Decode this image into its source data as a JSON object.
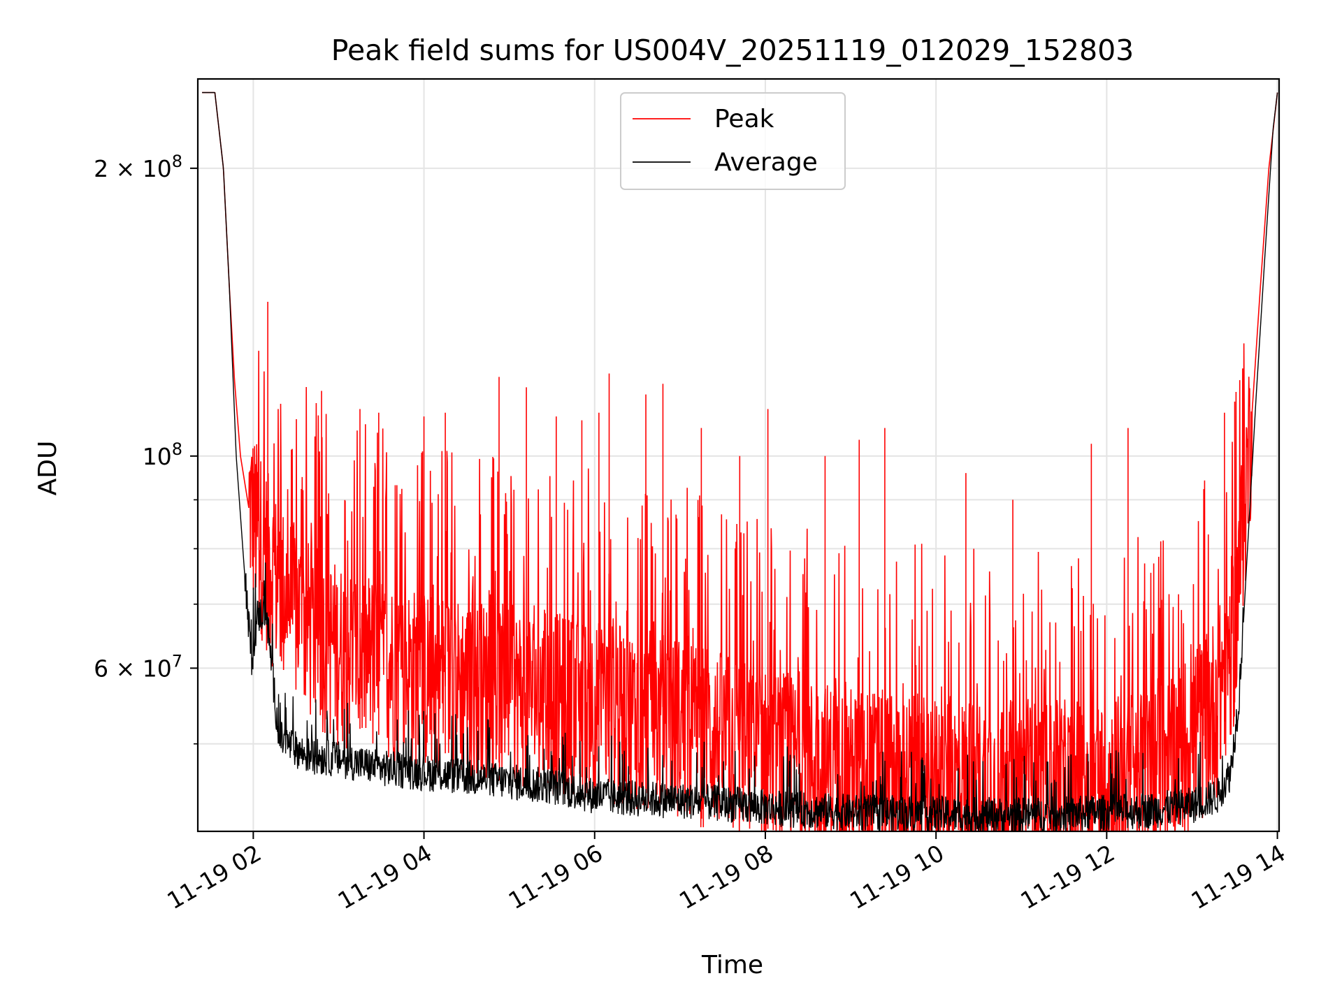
{
  "chart_data": {
    "type": "line",
    "title": "Peak field sums for US004V_20251119_012029_152803",
    "xlabel": "Time",
    "ylabel": "ADU",
    "yscale": "log",
    "xlim": [
      1.35,
      14.02
    ],
    "ylim": [
      40500000,
      248000000
    ],
    "grid": true,
    "legend": {
      "position": "upper center",
      "entries": [
        "Peak",
        "Average"
      ]
    },
    "x_ticks": [
      {
        "value": 2,
        "label": "11-19 02"
      },
      {
        "value": 4,
        "label": "11-19 04"
      },
      {
        "value": 6,
        "label": "11-19 06"
      },
      {
        "value": 8,
        "label": "11-19 08"
      },
      {
        "value": 10,
        "label": "11-19 10"
      },
      {
        "value": 12,
        "label": "11-19 12"
      },
      {
        "value": 14,
        "label": "11-19 14"
      }
    ],
    "y_ticks": [
      {
        "value": 200000000,
        "label": "2 × 10⁸",
        "mant": "2 × 10",
        "exp": "8"
      },
      {
        "value": 100000000,
        "label": "10⁸",
        "mant": "10",
        "exp": "8"
      },
      {
        "value": 60000000,
        "label": "6 × 10⁷",
        "mant": "6 × 10",
        "exp": "7"
      }
    ],
    "y_minor_ticks": [
      50000000,
      70000000,
      80000000,
      90000000
    ],
    "series": [
      {
        "name": "Peak",
        "color": "#ff0000",
        "x": [
          1.4,
          1.55,
          1.65,
          1.72,
          1.78,
          1.85,
          1.95,
          2.1,
          2.3,
          2.6,
          3.0,
          3.5,
          4.0,
          4.5,
          5.0,
          5.5,
          6.0,
          6.5,
          7.0,
          7.5,
          8.0,
          8.5,
          9.0,
          9.5,
          10.0,
          10.5,
          11.0,
          11.5,
          12.0,
          12.5,
          13.0,
          13.3,
          13.5,
          13.6,
          13.7,
          13.8,
          13.9,
          14.0
        ],
        "values": [
          240000000,
          240000000,
          200000000,
          150000000,
          120000000,
          100000000,
          88000000,
          80000000,
          72000000,
          66000000,
          62000000,
          60000000,
          58000000,
          57000000,
          56000000,
          55000000,
          54000000,
          53000000,
          52000000,
          50000000,
          48000000,
          47000000,
          46000000,
          45500000,
          45000000,
          44800000,
          44500000,
          44500000,
          45000000,
          46000000,
          50000000,
          55000000,
          65000000,
          85000000,
          110000000,
          150000000,
          200000000,
          240000000
        ],
        "spikes": [
          {
            "x": 2.17,
            "value": 145000000
          },
          {
            "x": 2.8,
            "value": 117000000
          },
          {
            "x": 3.25,
            "value": 112000000
          },
          {
            "x": 3.47,
            "value": 111000000
          },
          {
            "x": 4.0,
            "value": 110000000
          },
          {
            "x": 4.25,
            "value": 111000000
          },
          {
            "x": 4.88,
            "value": 121000000
          },
          {
            "x": 5.2,
            "value": 118000000
          },
          {
            "x": 5.55,
            "value": 110000000
          },
          {
            "x": 5.85,
            "value": 109000000
          },
          {
            "x": 6.05,
            "value": 111000000
          },
          {
            "x": 6.17,
            "value": 122000000
          },
          {
            "x": 6.6,
            "value": 116000000
          },
          {
            "x": 6.8,
            "value": 119000000
          },
          {
            "x": 7.25,
            "value": 107000000
          },
          {
            "x": 7.7,
            "value": 100000000
          },
          {
            "x": 8.03,
            "value": 112000000
          },
          {
            "x": 8.7,
            "value": 100000000
          },
          {
            "x": 9.1,
            "value": 104000000
          },
          {
            "x": 9.4,
            "value": 107000000
          },
          {
            "x": 10.35,
            "value": 96000000
          },
          {
            "x": 10.9,
            "value": 90000000
          },
          {
            "x": 11.82,
            "value": 103000000
          },
          {
            "x": 12.25,
            "value": 107000000
          },
          {
            "x": 13.38,
            "value": 111000000
          },
          {
            "x": 13.5,
            "value": 114000000
          }
        ]
      },
      {
        "name": "Average",
        "color": "#000000",
        "x": [
          1.4,
          1.55,
          1.65,
          1.72,
          1.8,
          1.9,
          1.98,
          2.05,
          2.15,
          2.3,
          2.6,
          3.0,
          3.5,
          4.0,
          4.5,
          5.0,
          5.5,
          6.0,
          6.5,
          7.0,
          7.5,
          8.0,
          8.5,
          9.0,
          9.5,
          10.0,
          10.5,
          11.0,
          11.5,
          12.0,
          12.5,
          13.0,
          13.3,
          13.45,
          13.55,
          13.65,
          13.75,
          13.85,
          13.95,
          14.0
        ],
        "values": [
          240000000,
          240000000,
          200000000,
          150000000,
          100000000,
          75000000,
          60000000,
          67000000,
          68000000,
          50000000,
          48000000,
          47500000,
          46500000,
          46000000,
          45500000,
          45000000,
          44500000,
          43500000,
          43200000,
          43000000,
          42700000,
          42300000,
          42000000,
          41800000,
          41700000,
          41600000,
          41500000,
          41500000,
          41600000,
          41800000,
          42000000,
          42500000,
          43500000,
          46000000,
          55000000,
          80000000,
          115000000,
          160000000,
          220000000,
          240000000
        ]
      }
    ]
  }
}
